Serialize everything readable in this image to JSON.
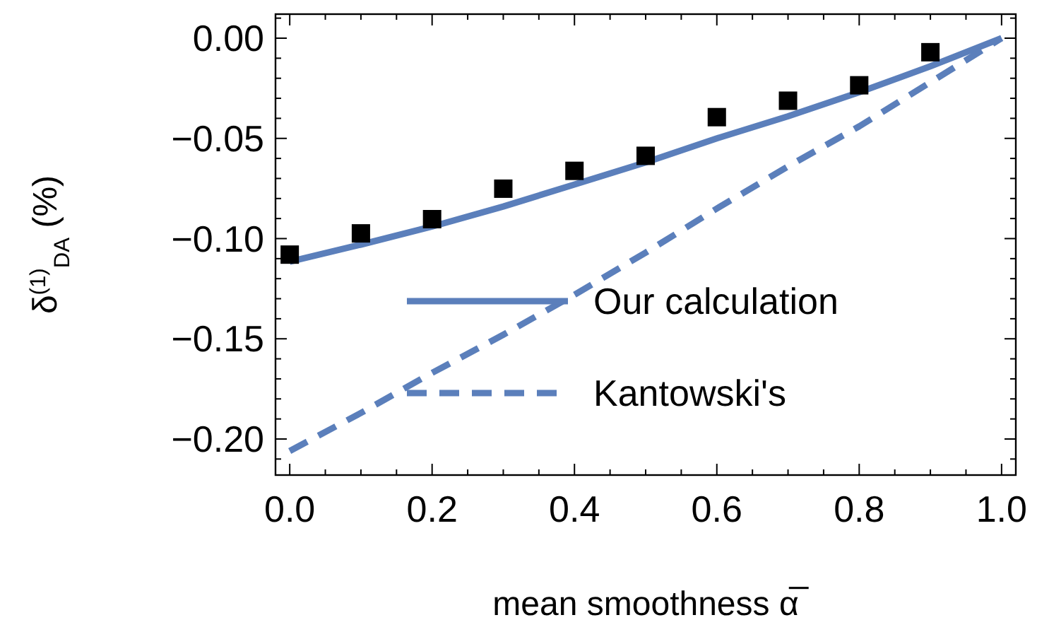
{
  "chart_data": {
    "type": "line",
    "xlabel": "mean smoothness α̅",
    "ylabel": "δ$^{(1)}$$_{DA}$ (%)",
    "xlim": [
      -0.02,
      1.02
    ],
    "ylim": [
      -0.218,
      0.012
    ],
    "xticks": [
      {
        "value": 0,
        "label": "0.0"
      },
      {
        "value": 0.05,
        "label": null
      },
      {
        "value": 0.1,
        "label": null
      },
      {
        "value": 0.15,
        "label": null
      },
      {
        "value": 0.2,
        "label": "0.2"
      },
      {
        "value": 0.25,
        "label": null
      },
      {
        "value": 0.3,
        "label": null
      },
      {
        "value": 0.35,
        "label": null
      },
      {
        "value": 0.4,
        "label": "0.4"
      },
      {
        "value": 0.45,
        "label": null
      },
      {
        "value": 0.5,
        "label": null
      },
      {
        "value": 0.55,
        "label": null
      },
      {
        "value": 0.6,
        "label": "0.6"
      },
      {
        "value": 0.65,
        "label": null
      },
      {
        "value": 0.7,
        "label": null
      },
      {
        "value": 0.75,
        "label": null
      },
      {
        "value": 0.8,
        "label": "0.8"
      },
      {
        "value": 0.85,
        "label": null
      },
      {
        "value": 0.9,
        "label": null
      },
      {
        "value": 0.95,
        "label": null
      },
      {
        "value": 1,
        "label": "1.0"
      }
    ],
    "yticks": [
      {
        "value": -0.21,
        "label": null
      },
      {
        "value": -0.2,
        "label": "−0.20"
      },
      {
        "value": -0.19,
        "label": null
      },
      {
        "value": -0.18,
        "label": null
      },
      {
        "value": -0.17,
        "label": null
      },
      {
        "value": -0.16,
        "label": null
      },
      {
        "value": -0.15,
        "label": "−0.15"
      },
      {
        "value": -0.14,
        "label": null
      },
      {
        "value": -0.13,
        "label": null
      },
      {
        "value": -0.12,
        "label": null
      },
      {
        "value": -0.11,
        "label": null
      },
      {
        "value": -0.1,
        "label": "−0.10"
      },
      {
        "value": -0.09,
        "label": null
      },
      {
        "value": -0.08,
        "label": null
      },
      {
        "value": -0.07,
        "label": null
      },
      {
        "value": -0.06,
        "label": null
      },
      {
        "value": -0.05,
        "label": "−0.05"
      },
      {
        "value": -0.04,
        "label": null
      },
      {
        "value": -0.03,
        "label": null
      },
      {
        "value": -0.02,
        "label": null
      },
      {
        "value": -0.01,
        "label": null
      },
      {
        "value": 0,
        "label": "0.00"
      },
      {
        "value": 0.01,
        "label": null
      }
    ],
    "grid": false,
    "legend": "bottom right",
    "series": [
      {
        "name": "Our calculation",
        "color": "#5b7fbb",
        "line_style": "solid",
        "x": [
          0,
          0.1,
          0.2,
          0.3,
          0.4,
          0.5,
          0.6,
          0.7,
          0.8,
          0.9,
          1
        ],
        "values": [
          -0.1115,
          -0.103,
          -0.094,
          -0.084,
          -0.073,
          -0.062,
          -0.05,
          -0.039,
          -0.027,
          -0.014,
          0
        ]
      },
      {
        "name": "Kantowski's",
        "color": "#5b7fbb",
        "line_style": "dashed",
        "x": [
          0,
          0.1,
          0.2,
          0.3,
          0.4,
          0.5,
          0.6,
          0.7,
          0.8,
          0.9,
          1
        ],
        "values": [
          -0.206,
          -0.187,
          -0.167,
          -0.148,
          -0.128,
          -0.107,
          -0.085,
          -0.064,
          -0.044,
          -0.022,
          0
        ]
      },
      {
        "type": "scatter",
        "color": "#000000",
        "marker": "square",
        "x": [
          0,
          0.1,
          0.2,
          0.3,
          0.4,
          0.5,
          0.6,
          0.7,
          0.8,
          0.9
        ],
        "values": [
          -0.108,
          -0.0974,
          -0.0903,
          -0.0751,
          -0.0662,
          -0.0587,
          -0.0394,
          -0.0312,
          -0.0235,
          -0.007
        ]
      }
    ]
  }
}
